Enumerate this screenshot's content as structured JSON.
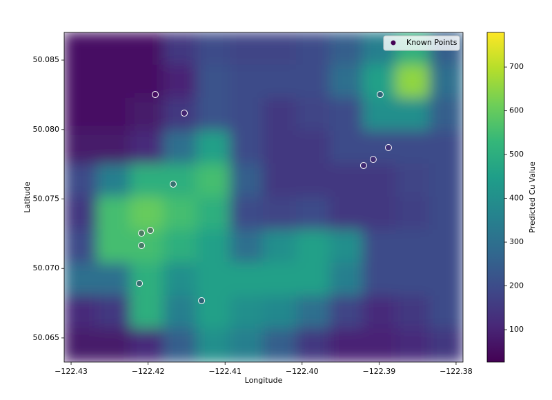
{
  "chart_data": {
    "type": "heatmap-scatter",
    "x_label": "Longitude",
    "y_label": "Latitude",
    "xlim": [
      -122.4309,
      -122.3791
    ],
    "ylim": [
      50.06326,
      50.08699
    ],
    "xticks": [
      {
        "value": -122.43,
        "label": "−122.43"
      },
      {
        "value": -122.42,
        "label": "−122.42"
      },
      {
        "value": -122.41,
        "label": "−122.41"
      },
      {
        "value": -122.4,
        "label": "−122.40"
      },
      {
        "value": -122.39,
        "label": "−122.39"
      },
      {
        "value": -122.38,
        "label": "−122.38"
      }
    ],
    "yticks": [
      50.065,
      {
        "value": 50.07,
        "label": "50.070"
      },
      50.075,
      {
        "value": 50.08,
        "label": "50.080"
      },
      50.085
    ],
    "z": [
      [
        60,
        60,
        60,
        150,
        200,
        180,
        180,
        200,
        250,
        350,
        500,
        250
      ],
      [
        60,
        60,
        60,
        100,
        220,
        200,
        200,
        200,
        300,
        450,
        650,
        300
      ],
      [
        60,
        60,
        80,
        150,
        220,
        200,
        150,
        180,
        200,
        400,
        400,
        250
      ],
      [
        80,
        80,
        120,
        300,
        450,
        200,
        150,
        150,
        200,
        200,
        200,
        200
      ],
      [
        200,
        350,
        500,
        500,
        550,
        250,
        150,
        150,
        150,
        150,
        180,
        200
      ],
      [
        150,
        550,
        600,
        550,
        500,
        200,
        180,
        200,
        150,
        150,
        170,
        200
      ],
      [
        200,
        550,
        550,
        500,
        450,
        300,
        400,
        450,
        400,
        200,
        200,
        200
      ],
      [
        300,
        300,
        500,
        400,
        450,
        450,
        450,
        450,
        350,
        200,
        200,
        200
      ],
      [
        120,
        150,
        500,
        350,
        450,
        400,
        380,
        300,
        180,
        120,
        150,
        200
      ],
      [
        80,
        80,
        120,
        250,
        400,
        350,
        250,
        150,
        100,
        100,
        120,
        150
      ]
    ],
    "clim": [
      26,
      779
    ],
    "colorbar_label": "Predicted Cu Value",
    "colorbar_ticks": [
      100,
      200,
      300,
      400,
      500,
      600,
      700
    ],
    "series": [
      {
        "name": "Known Points",
        "color": "#440154",
        "x": [
          -122.41907,
          -122.4153,
          -122.41674,
          -122.42086,
          -122.4197,
          -122.42086,
          -122.42113,
          -122.41306,
          -122.38986,
          -122.38878,
          -122.39076,
          -122.39201
        ],
        "values": [
          50.08252,
          50.08118,
          50.07607,
          50.07254,
          50.07274,
          50.07165,
          50.06892,
          50.06768,
          50.08252,
          50.0787,
          50.07785,
          50.07741
        ]
      }
    ],
    "legend": "upper right"
  }
}
